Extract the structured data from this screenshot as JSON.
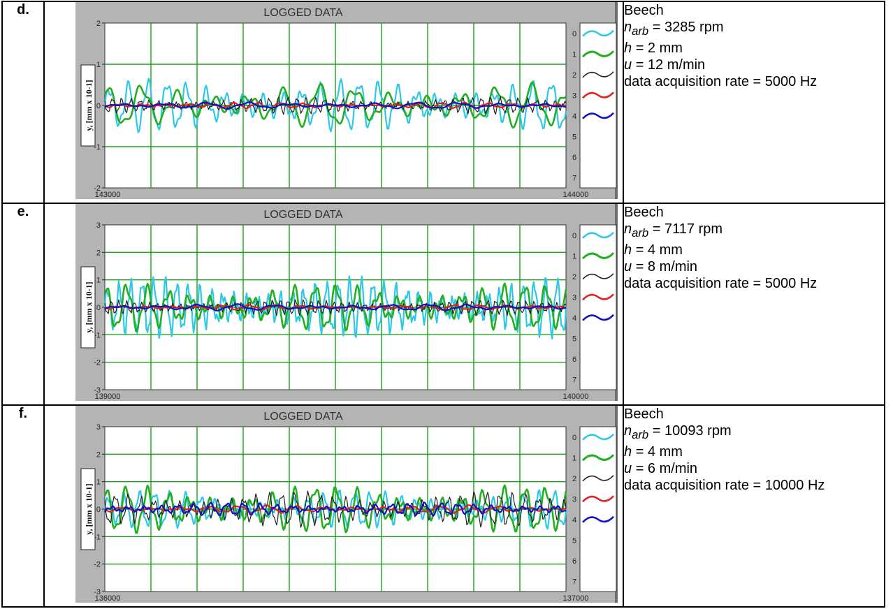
{
  "rows": [
    {
      "label": "d.",
      "info": {
        "species": "Beech",
        "narb_value": "= 3285 rpm",
        "h_value": "= 2 mm",
        "u_value": "= 12 m/min",
        "rate": "data acquisition rate = 5000 Hz"
      }
    },
    {
      "label": "e.",
      "info": {
        "species": "Beech",
        "narb_value": "= 7117 rpm",
        "h_value": "= 4 mm",
        "u_value": "= 8 m/min",
        "rate": "data acquisition rate = 5000 Hz"
      }
    },
    {
      "label": "f.",
      "info": {
        "species": "Beech",
        "narb_value": "= 10093 rpm",
        "h_value": "= 4 mm",
        "u_value": "= 6 m/min",
        "rate": "data acquisition rate = 10000 Hz"
      }
    }
  ],
  "colors": {
    "panel_bg": "#b4b4b4",
    "plot_bg": "#ffffff",
    "grid": "#1aa31a",
    "ch0": "#2ec8e6",
    "ch1": "#22b022",
    "ch2": "#202020",
    "ch3": "#e02020",
    "ch4": "#1010c8"
  },
  "chart_data": [
    {
      "type": "line",
      "title": "LOGGED DATA",
      "ylabel": "y, [mm x 10-1]",
      "xlim": [
        143000,
        144000
      ],
      "ylim": [
        -2,
        2
      ],
      "yticks": [
        2,
        1,
        0,
        -1,
        -2
      ],
      "xticks": [
        143000,
        144000
      ],
      "legend": [
        "0",
        "1",
        "2",
        "3",
        "4",
        "5",
        "6",
        "7"
      ],
      "legend_position": "right",
      "grid": true,
      "series": [
        {
          "name": "0",
          "amplitude": 0.55,
          "cycles": 24
        },
        {
          "name": "1",
          "amplitude": 0.45,
          "cycles": 13
        },
        {
          "name": "2",
          "amplitude": 0.18,
          "cycles": 50
        },
        {
          "name": "3",
          "amplitude": 0.06,
          "cycles": 20
        },
        {
          "name": "4",
          "amplitude": 0.07,
          "cycles": 11
        }
      ]
    },
    {
      "type": "line",
      "title": "LOGGED DATA",
      "ylabel": "y, [mm x 10-1]",
      "xlim": [
        139000,
        140000
      ],
      "ylim": [
        -3,
        3
      ],
      "yticks": [
        3,
        2,
        1,
        0,
        -1,
        -2,
        -3
      ],
      "xticks": [
        139000,
        140000
      ],
      "legend": [
        "0",
        "1",
        "2",
        "3",
        "4",
        "5",
        "6",
        "7"
      ],
      "legend_position": "right",
      "grid": true,
      "series": [
        {
          "name": "0",
          "amplitude": 0.95,
          "cycles": 40
        },
        {
          "name": "1",
          "amplitude": 0.75,
          "cycles": 22
        },
        {
          "name": "2",
          "amplitude": 0.25,
          "cycles": 60
        },
        {
          "name": "3",
          "amplitude": 0.08,
          "cycles": 18
        },
        {
          "name": "4",
          "amplitude": 0.1,
          "cycles": 12
        }
      ]
    },
    {
      "type": "line",
      "title": "LOGGED DATA",
      "ylabel": "y, [mm x 10-1]",
      "xlim": [
        136000,
        137000
      ],
      "ylim": [
        -3,
        3
      ],
      "yticks": [
        3,
        2,
        1,
        0,
        -1,
        -2,
        -3
      ],
      "xticks": [
        136000,
        137000
      ],
      "legend": [
        "0",
        "1",
        "2",
        "3",
        "4",
        "5",
        "6",
        "7"
      ],
      "legend_position": "right",
      "grid": true,
      "series": [
        {
          "name": "0",
          "amplitude": 0.6,
          "cycles": 30
        },
        {
          "name": "1",
          "amplitude": 0.75,
          "cycles": 22
        },
        {
          "name": "2",
          "amplitude": 0.55,
          "cycles": 36
        },
        {
          "name": "3",
          "amplitude": 0.12,
          "cycles": 16
        },
        {
          "name": "4",
          "amplitude": 0.2,
          "cycles": 28
        }
      ]
    }
  ]
}
